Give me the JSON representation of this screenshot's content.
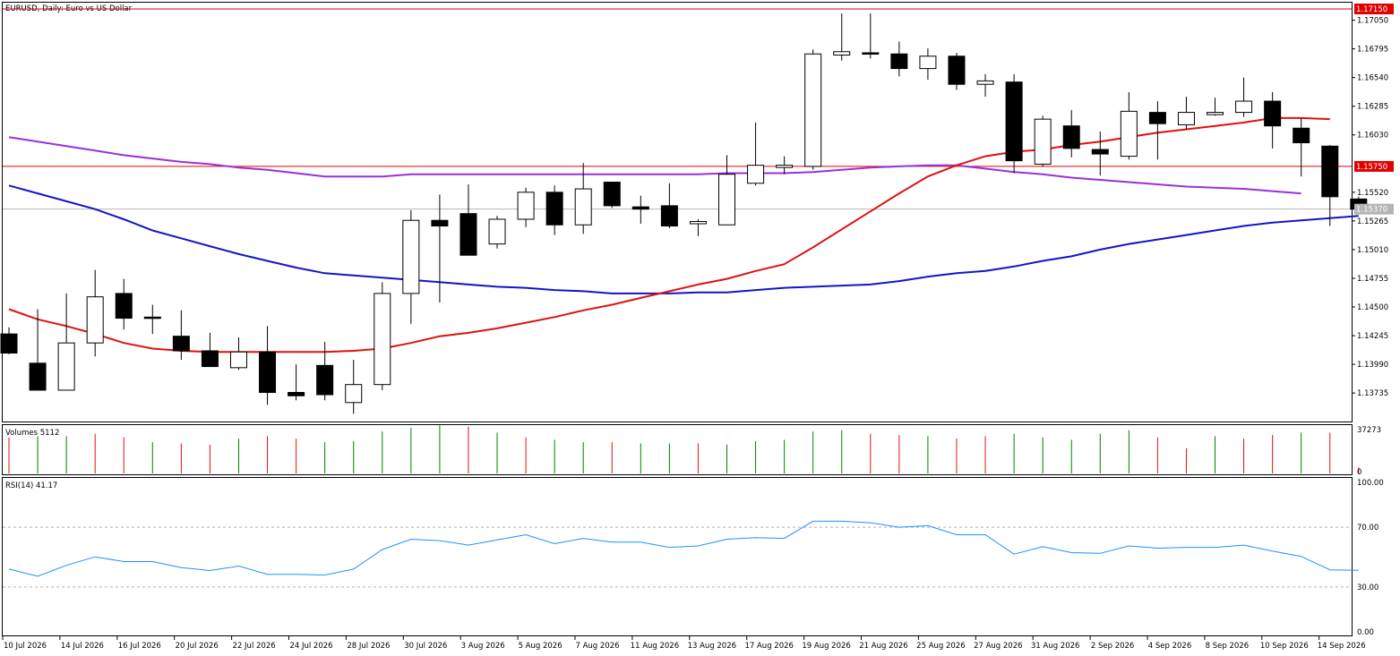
{
  "chart_data": {
    "type": "candlestick",
    "title": "EURUSD, Daily: Euro vs US Dollar",
    "x_labels": [
      "10 Jul 2026",
      "14 Jul 2026",
      "16 Jul 2026",
      "20 Jul 2026",
      "22 Jul 2026",
      "24 Jul 2026",
      "28 Jul 2026",
      "30 Jul 2026",
      "3 Aug 2026",
      "5 Aug 2026",
      "7 Aug 2026",
      "11 Aug 2026",
      "13 Aug 2026",
      "17 Aug 2026",
      "19 Aug 2026",
      "21 Aug 2026",
      "25 Aug 2026",
      "27 Aug 2026",
      "31 Aug 2026",
      "2 Sep 2026",
      "4 Sep 2026",
      "8 Sep 2026",
      "10 Sep 2026",
      "14 Sep 2026"
    ],
    "price_axis": {
      "ticks": [
        "1.17050",
        "1.16795",
        "1.16540",
        "1.16285",
        "1.16030",
        "1.15520",
        "1.15265",
        "1.15010",
        "1.14755",
        "1.14500",
        "1.14245",
        "1.13990",
        "1.13735"
      ],
      "ylim": [
        1.1351,
        1.7205
      ]
    },
    "price_markers": [
      {
        "label": "1.17150",
        "value": 1.1715,
        "color": "#e00000"
      },
      {
        "label": "1.15750",
        "value": 1.1575,
        "color": "#e00000"
      },
      {
        "label": "1.15370",
        "value": 1.1537,
        "color": "#b4b4b4"
      }
    ],
    "candles": [
      {
        "o": 1.1426,
        "h": 1.1432,
        "l": 1.1408,
        "c": 1.1409
      },
      {
        "o": 1.14,
        "h": 1.1448,
        "l": 1.1376,
        "c": 1.1376
      },
      {
        "o": 1.1376,
        "h": 1.1462,
        "l": 1.1376,
        "c": 1.1418
      },
      {
        "o": 1.1418,
        "h": 1.1483,
        "l": 1.1406,
        "c": 1.1459
      },
      {
        "o": 1.1462,
        "h": 1.1475,
        "l": 1.143,
        "c": 1.144
      },
      {
        "o": 1.1441,
        "h": 1.1452,
        "l": 1.1426,
        "c": 1.144
      },
      {
        "o": 1.1424,
        "h": 1.1447,
        "l": 1.1403,
        "c": 1.1411
      },
      {
        "o": 1.1411,
        "h": 1.1427,
        "l": 1.1397,
        "c": 1.1397
      },
      {
        "o": 1.1396,
        "h": 1.1423,
        "l": 1.1394,
        "c": 1.141
      },
      {
        "o": 1.141,
        "h": 1.1433,
        "l": 1.1363,
        "c": 1.1374
      },
      {
        "o": 1.1374,
        "h": 1.1399,
        "l": 1.1367,
        "c": 1.1371
      },
      {
        "o": 1.1398,
        "h": 1.1419,
        "l": 1.1367,
        "c": 1.1372
      },
      {
        "o": 1.1365,
        "h": 1.1403,
        "l": 1.1355,
        "c": 1.1381
      },
      {
        "o": 1.1381,
        "h": 1.1472,
        "l": 1.1376,
        "c": 1.1462
      },
      {
        "o": 1.1462,
        "h": 1.1536,
        "l": 1.1435,
        "c": 1.1527
      },
      {
        "o": 1.1527,
        "h": 1.155,
        "l": 1.1454,
        "c": 1.1522
      },
      {
        "o": 1.1533,
        "h": 1.1559,
        "l": 1.1499,
        "c": 1.1496
      },
      {
        "o": 1.1506,
        "h": 1.1531,
        "l": 1.1502,
        "c": 1.1528
      },
      {
        "o": 1.1528,
        "h": 1.1556,
        "l": 1.1521,
        "c": 1.1552
      },
      {
        "o": 1.1552,
        "h": 1.1558,
        "l": 1.1514,
        "c": 1.1523
      },
      {
        "o": 1.1523,
        "h": 1.1578,
        "l": 1.1515,
        "c": 1.1555
      },
      {
        "o": 1.1561,
        "h": 1.1561,
        "l": 1.1538,
        "c": 1.154
      },
      {
        "o": 1.1539,
        "h": 1.1549,
        "l": 1.1524,
        "c": 1.1537
      },
      {
        "o": 1.154,
        "h": 1.156,
        "l": 1.152,
        "c": 1.1522
      },
      {
        "o": 1.1524,
        "h": 1.1528,
        "l": 1.1513,
        "c": 1.1526
      },
      {
        "o": 1.1523,
        "h": 1.1585,
        "l": 1.1523,
        "c": 1.1568
      },
      {
        "o": 1.156,
        "h": 1.1614,
        "l": 1.1558,
        "c": 1.1576
      },
      {
        "o": 1.1574,
        "h": 1.1584,
        "l": 1.1568,
        "c": 1.1576
      },
      {
        "o": 1.1575,
        "h": 1.1679,
        "l": 1.1572,
        "c": 1.1675
      },
      {
        "o": 1.1674,
        "h": 1.1711,
        "l": 1.1669,
        "c": 1.1677
      },
      {
        "o": 1.1676,
        "h": 1.1711,
        "l": 1.1671,
        "c": 1.1675
      },
      {
        "o": 1.1675,
        "h": 1.1686,
        "l": 1.1655,
        "c": 1.1662
      },
      {
        "o": 1.1662,
        "h": 1.168,
        "l": 1.1652,
        "c": 1.1673
      },
      {
        "o": 1.1673,
        "h": 1.1676,
        "l": 1.1643,
        "c": 1.1648
      },
      {
        "o": 1.1648,
        "h": 1.1657,
        "l": 1.1637,
        "c": 1.1651
      },
      {
        "o": 1.165,
        "h": 1.1657,
        "l": 1.1569,
        "c": 1.158
      },
      {
        "o": 1.1577,
        "h": 1.162,
        "l": 1.1575,
        "c": 1.1617
      },
      {
        "o": 1.1611,
        "h": 1.1625,
        "l": 1.1583,
        "c": 1.1591
      },
      {
        "o": 1.159,
        "h": 1.1606,
        "l": 1.1567,
        "c": 1.1586
      },
      {
        "o": 1.1584,
        "h": 1.1641,
        "l": 1.1581,
        "c": 1.1624
      },
      {
        "o": 1.1623,
        "h": 1.1633,
        "l": 1.1581,
        "c": 1.1613
      },
      {
        "o": 1.1612,
        "h": 1.1637,
        "l": 1.1608,
        "c": 1.1623
      },
      {
        "o": 1.1621,
        "h": 1.1636,
        "l": 1.162,
        "c": 1.1623
      },
      {
        "o": 1.1623,
        "h": 1.1654,
        "l": 1.1619,
        "c": 1.1633
      },
      {
        "o": 1.1633,
        "h": 1.1641,
        "l": 1.1591,
        "c": 1.1611
      },
      {
        "o": 1.1609,
        "h": 1.1618,
        "l": 1.1566,
        "c": 1.1596
      },
      {
        "o": 1.1593,
        "h": 1.1594,
        "l": 1.1522,
        "c": 1.1548
      },
      {
        "o": 1.1546,
        "h": 1.1548,
        "l": 1.1535,
        "c": 1.1537
      }
    ],
    "ma_red": [
      1.1448,
      1.1439,
      1.1433,
      1.1426,
      1.1418,
      1.1413,
      1.1411,
      1.141,
      1.141,
      1.141,
      1.141,
      1.141,
      1.1411,
      1.1413,
      1.1418,
      1.1424,
      1.1427,
      1.1431,
      1.1436,
      1.1441,
      1.1447,
      1.1452,
      1.1458,
      1.1464,
      1.147,
      1.1475,
      1.1482,
      1.1488,
      1.1503,
      1.1519,
      1.1535,
      1.1551,
      1.1566,
      1.1576,
      1.1584,
      1.1588,
      1.159,
      1.1594,
      1.1597,
      1.1601,
      1.1605,
      1.1608,
      1.1611,
      1.1614,
      1.1618,
      1.1618,
      1.1617
    ],
    "ma_purple": [
      1.1601,
      1.1597,
      1.1593,
      1.1589,
      1.1585,
      1.1582,
      1.1579,
      1.1577,
      1.1574,
      1.1572,
      1.1569,
      1.1566,
      1.1566,
      1.1566,
      1.1568,
      1.1568,
      1.1568,
      1.1568,
      1.1568,
      1.1568,
      1.1568,
      1.1568,
      1.1568,
      1.1568,
      1.1568,
      1.1569,
      1.1569,
      1.1569,
      1.157,
      1.1572,
      1.1574,
      1.1575,
      1.1576,
      1.1576,
      1.1573,
      1.157,
      1.1568,
      1.1565,
      1.1563,
      1.1561,
      1.1559,
      1.1557,
      1.1556,
      1.1555,
      1.1553,
      1.1551
    ],
    "ma_blue": [
      1.1558,
      1.1551,
      1.1544,
      1.1537,
      1.1528,
      1.1518,
      1.1511,
      1.1504,
      1.1497,
      1.1491,
      1.1485,
      1.148,
      1.1478,
      1.1476,
      1.1474,
      1.1472,
      1.147,
      1.1468,
      1.1467,
      1.1465,
      1.1464,
      1.1462,
      1.1462,
      1.1462,
      1.1463,
      1.1463,
      1.1465,
      1.1467,
      1.1468,
      1.1469,
      1.147,
      1.1473,
      1.1477,
      1.148,
      1.1482,
      1.1486,
      1.1491,
      1.1495,
      1.1501,
      1.1506,
      1.151,
      1.1514,
      1.1518,
      1.1522,
      1.1525,
      1.1527,
      1.1529,
      1.1531
    ],
    "volumes": {
      "label": "Volumes 5112",
      "ticks": [
        "37273",
        "0"
      ],
      "max": 37273,
      "values": [
        30000,
        31000,
        31000,
        33000,
        30000,
        26000,
        25000,
        24000,
        29000,
        31000,
        29000,
        26000,
        27000,
        35000,
        38000,
        40000,
        39000,
        34000,
        30000,
        28000,
        26000,
        26000,
        25000,
        25000,
        25000,
        24000,
        27000,
        28000,
        35000,
        36000,
        33000,
        32000,
        31000,
        29000,
        31000,
        33000,
        30000,
        28000,
        33000,
        36000,
        30000,
        21000,
        31000,
        29000,
        32000,
        34000,
        34000,
        5112
      ],
      "up": [
        false,
        true,
        true,
        false,
        false,
        true,
        false,
        false,
        true,
        false,
        false,
        true,
        true,
        true,
        true,
        true,
        false,
        true,
        false,
        true,
        true,
        false,
        true,
        true,
        false,
        true,
        true,
        true,
        true,
        true,
        false,
        false,
        true,
        false,
        false,
        true,
        true,
        true,
        true,
        true,
        false,
        false,
        true,
        false,
        false,
        true,
        false,
        false
      ]
    },
    "rsi": {
      "label": "RSI(14) 41.17",
      "ticks": [
        "100.00",
        "70.00",
        "30.00",
        "0.00"
      ],
      "levels": [
        70,
        30
      ],
      "values": [
        42.0,
        37.2,
        44.5,
        50.2,
        47.0,
        47.0,
        43.0,
        41.0,
        44.0,
        38.5,
        38.5,
        38.0,
        42.0,
        55.0,
        62.0,
        61.0,
        58.0,
        61.5,
        65.0,
        59.0,
        62.5,
        60.0,
        60.0,
        56.5,
        57.5,
        62.0,
        63.0,
        62.5,
        74.0,
        74.0,
        73.0,
        70.0,
        71.0,
        65.0,
        65.0,
        52.0,
        57.0,
        53.0,
        52.5,
        57.5,
        56.0,
        56.5,
        56.5,
        58.0,
        54.0,
        50.5,
        41.5,
        41.17
      ]
    }
  }
}
